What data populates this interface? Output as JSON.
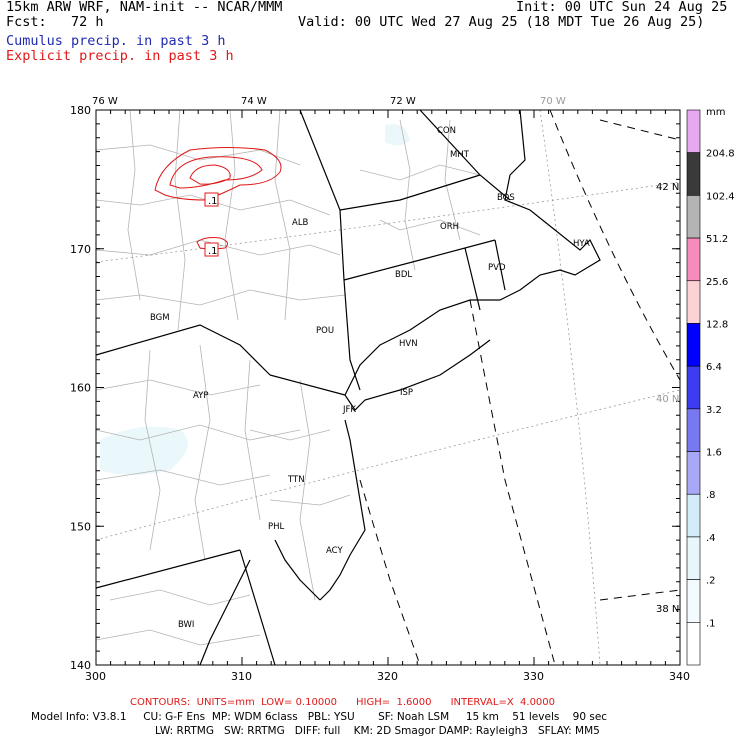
{
  "header": {
    "title": "15km ARW WRF, NAM-init -- NCAR/MMM",
    "fcst": "Fcst:   72 h",
    "init": "Init: 00 UTC Sun 24 Aug 25",
    "valid": "Valid: 00 UTC Wed 27 Aug 25 (18 MDT Tue 26 Aug 25)",
    "cumulus_label": "Cumulus precip. in past 3 h",
    "explicit_label": "Explicit precip. in past 3 h",
    "cumulus_color": "#1f2bb0",
    "explicit_color": "#e01818"
  },
  "map": {
    "x_axis_ticks": [
      "300",
      "310",
      "320",
      "330",
      "340"
    ],
    "y_axis_ticks": [
      "140",
      "150",
      "160",
      "170",
      "180"
    ],
    "longitude_labels": [
      "76 W",
      "74 W",
      "72 W",
      "70 W"
    ],
    "latitude_labels": [
      "42 N",
      "40 N",
      "38 N"
    ],
    "stations": [
      {
        "id": "CON"
      },
      {
        "id": "MHT"
      },
      {
        "id": "BOS"
      },
      {
        "id": "ORH"
      },
      {
        "id": "PVD"
      },
      {
        "id": "HYA"
      },
      {
        "id": "ALB"
      },
      {
        "id": "BDL"
      },
      {
        "id": "BGM"
      },
      {
        "id": "POU"
      },
      {
        "id": "HVN"
      },
      {
        "id": "ISP"
      },
      {
        "id": "AYP"
      },
      {
        "id": "JFK"
      },
      {
        "id": "TTN"
      },
      {
        "id": "PHL"
      },
      {
        "id": "ACY"
      },
      {
        "id": "BWI"
      }
    ],
    "contour_labels": [
      ".1",
      ".1"
    ]
  },
  "legend": {
    "unit": "mm",
    "values": [
      "204.8",
      "102.4",
      "51.2",
      "25.6",
      "12.8",
      "6.4",
      "3.2",
      "1.6",
      ".8",
      ".4",
      ".2",
      ".1"
    ],
    "colors": [
      "#e6a8f0",
      "#3a3a3a",
      "#b4b4b4",
      "#f58cbc",
      "#fcd2d4",
      "#0000ff",
      "#3c3cf0",
      "#7878f0",
      "#a8a8f6",
      "#d2ecfa",
      "#e8f6fc",
      "#f4fbfe",
      "#ffffff"
    ]
  },
  "footer": {
    "contours": "CONTOURS:  UNITS=mm  LOW= 0.10000      HIGH=  1.6000      INTERVAL=X  4.0000",
    "model_line1": "Model Info: V3.8.1     CU: G-F Ens  MP: WDM 6class   PBL: YSU       SF: Noah LSM     15 km    51 levels    90 sec",
    "model_line2": "LW: RRTMG   SW: RRTMG   DIFF: full    KM: 2D Smagor DAMP: Rayleigh3   SFLAY: MM5"
  }
}
